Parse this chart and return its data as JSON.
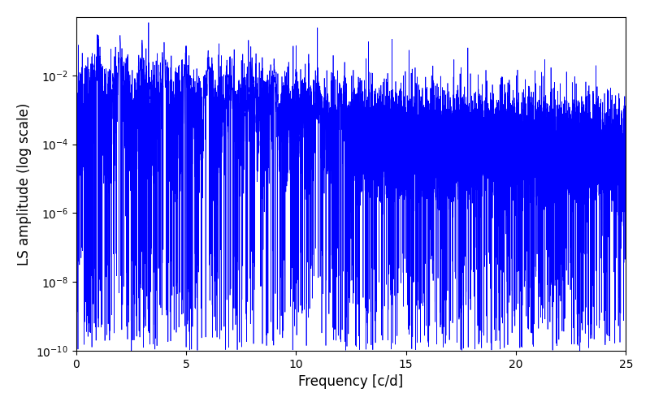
{
  "xlabel": "Frequency [c/d]",
  "ylabel": "LS amplitude (log scale)",
  "xlim": [
    0,
    25
  ],
  "ylim": [
    1e-10,
    0.5
  ],
  "line_color": "#0000ff",
  "line_width": 0.5,
  "figsize": [
    8.0,
    5.0
  ],
  "dpi": 100,
  "seed": 77,
  "freq_max": 25.0,
  "n_points": 15000
}
